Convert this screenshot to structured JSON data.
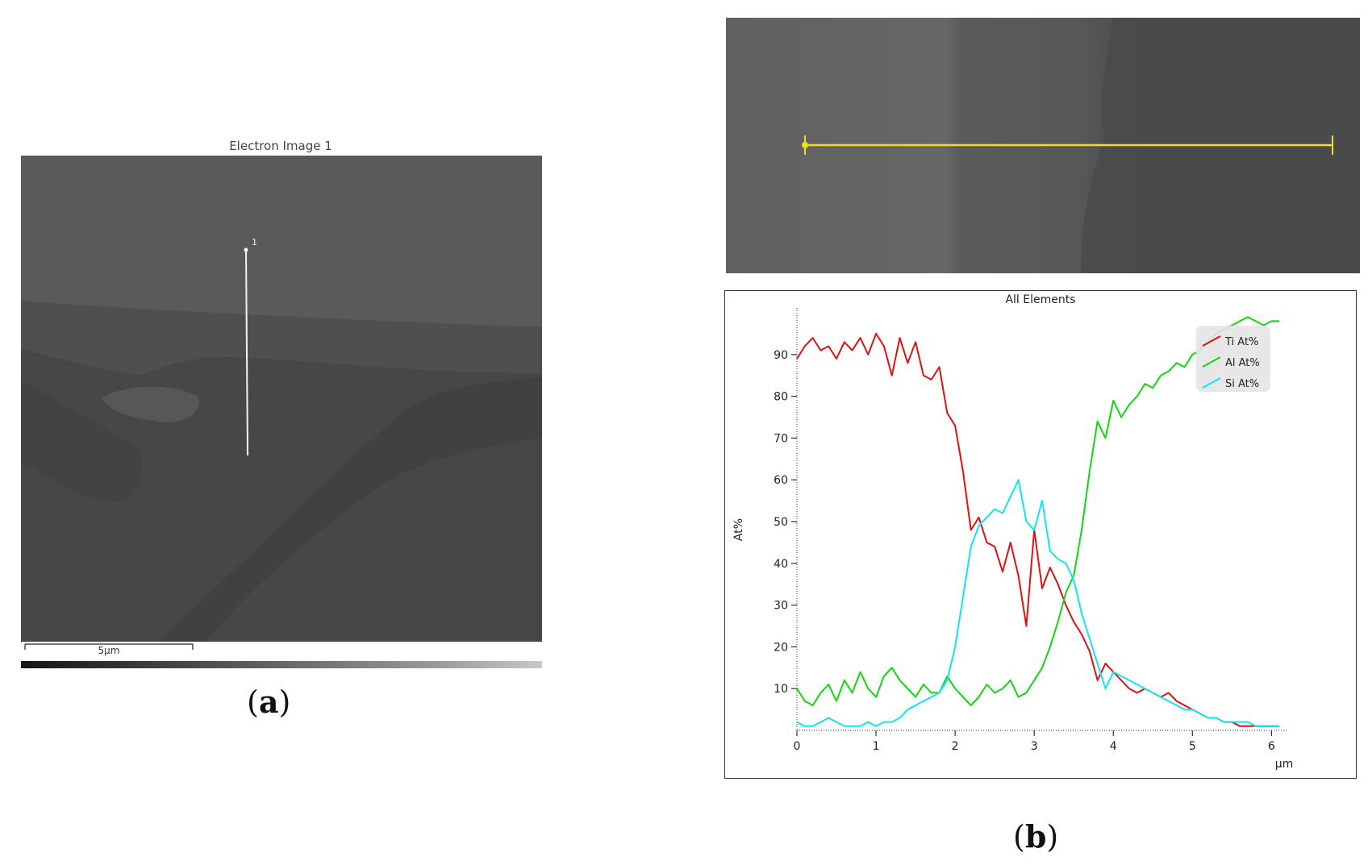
{
  "panel_a": {
    "image_title": "Electron Image 1",
    "line_marker": "1",
    "scale_label": "5µm",
    "caption_letter": "a"
  },
  "panel_b": {
    "caption_letter": "b"
  },
  "colors": {
    "ti": "#e01010",
    "al": "#10d810",
    "si": "#10e6f0",
    "scan_line": "#e8e020"
  },
  "chart_data": {
    "type": "line",
    "title": "All Elements",
    "xlabel": "µm",
    "ylabel": "At%",
    "xlim": [
      0,
      6.2
    ],
    "ylim": [
      0,
      100
    ],
    "xticks": [
      0,
      1,
      2,
      3,
      4,
      5,
      6
    ],
    "yticks": [
      10,
      20,
      30,
      40,
      50,
      60,
      70,
      80,
      90
    ],
    "legend_position": "top-right",
    "series": [
      {
        "name": "Ti At%",
        "x": [
          0,
          0.1,
          0.2,
          0.3,
          0.4,
          0.5,
          0.6,
          0.7,
          0.8,
          0.9,
          1.0,
          1.1,
          1.2,
          1.3,
          1.4,
          1.5,
          1.6,
          1.7,
          1.8,
          1.9,
          2.0,
          2.1,
          2.2,
          2.3,
          2.4,
          2.5,
          2.6,
          2.7,
          2.8,
          2.9,
          3.0,
          3.1,
          3.2,
          3.3,
          3.4,
          3.5,
          3.6,
          3.7,
          3.8,
          3.9,
          4.0,
          4.1,
          4.2,
          4.3,
          4.4,
          4.5,
          4.6,
          4.7,
          4.8,
          4.9,
          5.0,
          5.1,
          5.2,
          5.3,
          5.4,
          5.5,
          5.6,
          5.7,
          5.8,
          5.9,
          6.0,
          6.1
        ],
        "y": [
          89,
          92,
          94,
          91,
          92,
          89,
          93,
          91,
          94,
          90,
          95,
          92,
          85,
          94,
          88,
          93,
          85,
          84,
          87,
          76,
          73,
          62,
          48,
          51,
          45,
          44,
          38,
          45,
          37,
          25,
          48,
          34,
          39,
          35,
          30,
          26,
          23,
          19,
          12,
          16,
          14,
          12,
          10,
          9,
          10,
          9,
          8,
          9,
          7,
          6,
          5,
          4,
          3,
          3,
          2,
          2,
          1,
          1,
          1,
          1,
          1,
          1
        ]
      },
      {
        "name": "Al At%",
        "x": [
          0,
          0.1,
          0.2,
          0.3,
          0.4,
          0.5,
          0.6,
          0.7,
          0.8,
          0.9,
          1.0,
          1.1,
          1.2,
          1.3,
          1.4,
          1.5,
          1.6,
          1.7,
          1.8,
          1.9,
          2.0,
          2.1,
          2.2,
          2.3,
          2.4,
          2.5,
          2.6,
          2.7,
          2.8,
          2.9,
          3.0,
          3.1,
          3.2,
          3.3,
          3.4,
          3.5,
          3.6,
          3.7,
          3.8,
          3.9,
          4.0,
          4.1,
          4.2,
          4.3,
          4.4,
          4.5,
          4.6,
          4.7,
          4.8,
          4.9,
          5.0,
          5.1,
          5.2,
          5.3,
          5.4,
          5.5,
          5.6,
          5.7,
          5.8,
          5.9,
          6.0,
          6.1
        ],
        "y": [
          10,
          7,
          6,
          9,
          11,
          7,
          12,
          9,
          14,
          10,
          8,
          13,
          15,
          12,
          10,
          8,
          11,
          9,
          9,
          13,
          10,
          8,
          6,
          8,
          11,
          9,
          10,
          12,
          8,
          9,
          12,
          15,
          20,
          26,
          33,
          37,
          48,
          62,
          74,
          70,
          79,
          75,
          78,
          80,
          83,
          82,
          85,
          86,
          88,
          87,
          90,
          91,
          93,
          95,
          96,
          97,
          98,
          99,
          98,
          97,
          98,
          98
        ]
      },
      {
        "name": "Si At%",
        "x": [
          0,
          0.1,
          0.2,
          0.3,
          0.4,
          0.5,
          0.6,
          0.7,
          0.8,
          0.9,
          1.0,
          1.1,
          1.2,
          1.3,
          1.4,
          1.5,
          1.6,
          1.7,
          1.8,
          1.9,
          2.0,
          2.1,
          2.2,
          2.3,
          2.4,
          2.5,
          2.6,
          2.7,
          2.8,
          2.9,
          3.0,
          3.1,
          3.2,
          3.3,
          3.4,
          3.5,
          3.6,
          3.7,
          3.8,
          3.9,
          4.0,
          4.1,
          4.2,
          4.3,
          4.4,
          4.5,
          4.6,
          4.7,
          4.8,
          4.9,
          5.0,
          5.1,
          5.2,
          5.3,
          5.4,
          5.5,
          5.6,
          5.7,
          5.8,
          5.9,
          6.0,
          6.1
        ],
        "y": [
          2,
          1,
          1,
          2,
          3,
          2,
          1,
          1,
          1,
          2,
          1,
          2,
          2,
          3,
          5,
          6,
          7,
          8,
          9,
          12,
          20,
          32,
          44,
          49,
          51,
          53,
          52,
          56,
          60,
          50,
          48,
          55,
          43,
          41,
          40,
          36,
          28,
          22,
          16,
          10,
          14,
          13,
          12,
          11,
          10,
          9,
          8,
          7,
          6,
          5,
          5,
          4,
          3,
          3,
          2,
          2,
          2,
          2,
          1,
          1,
          1,
          1
        ]
      }
    ]
  }
}
